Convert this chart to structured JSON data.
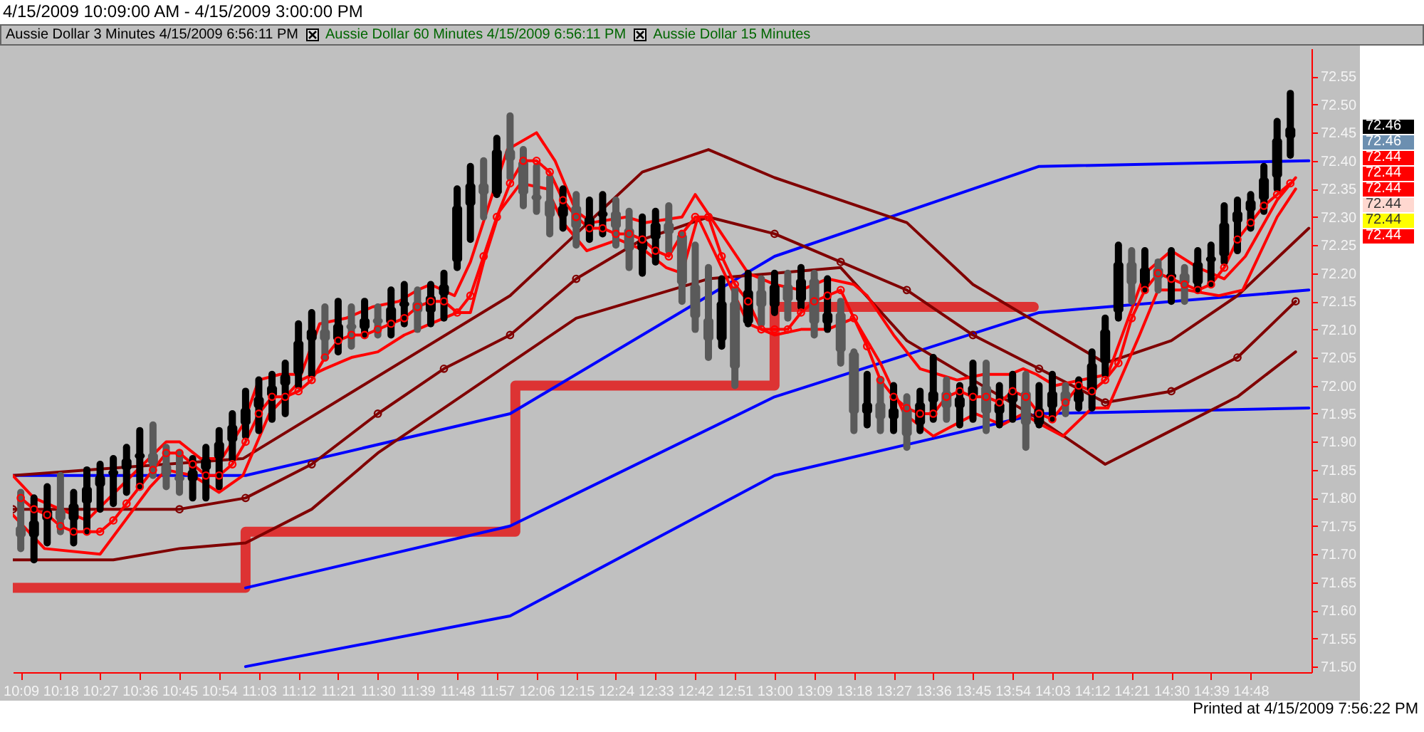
{
  "chart_data": {
    "type": "candlestick",
    "title": "4/15/2009 10:09:00 AM - 4/15/2009 3:00:00 PM",
    "subtitle": "Aussie Dollar 3 Minutes 4/15/2009 6:56:11 PM",
    "annotations": [
      "Aussie Dollar 60 Minutes 4/15/2009 6:56:11 PM",
      "Aussie Dollar 15 Minutes",
      "Printed at 4/15/2009 7:56:22 PM",
      "72.46",
      "72.46",
      "72.44",
      "72.44",
      "72.44",
      "72.44",
      "72.44",
      "72.44"
    ],
    "x": [
      10.15,
      10.2,
      10.25,
      10.3,
      10.35,
      10.4,
      10.45,
      10.5,
      10.55,
      10.6,
      10.65,
      10.7,
      10.75,
      10.8,
      10.85,
      10.9,
      10.95,
      11,
      11.05,
      11.1,
      11.15,
      11.2,
      11.25,
      11.3,
      11.35,
      11.4,
      11.45,
      11.5,
      11.55,
      11.6,
      11.65,
      11.7,
      11.75,
      11.8,
      11.85,
      11.9,
      11.95,
      12,
      12.05,
      12.1,
      12.15,
      12.2,
      12.25,
      12.3,
      12.35,
      12.4,
      12.45,
      12.5,
      12.55,
      12.6,
      12.65,
      12.7,
      12.75,
      12.8,
      12.85,
      12.9,
      12.95,
      13,
      13.05,
      13.1,
      13.15,
      13.2,
      13.25,
      13.3,
      13.35,
      13.4,
      13.45,
      13.5,
      13.55,
      13.6,
      13.65,
      13.7,
      13.75,
      13.8,
      13.85,
      13.9,
      13.95,
      14,
      14.05,
      14.1,
      14.15,
      14.2,
      14.25,
      14.3,
      14.35,
      14.4,
      14.45,
      14.5,
      14.55,
      14.6,
      14.65,
      14.7,
      14.75,
      14.8,
      14.85,
      14.9,
      14.95
    ],
    "ohlc": [
      [
        71.75,
        71.81,
        71.71,
        71.73
      ],
      [
        71.73,
        71.8,
        71.69,
        71.76
      ],
      [
        71.76,
        71.82,
        71.72,
        71.78
      ],
      [
        71.78,
        71.84,
        71.74,
        71.76
      ],
      [
        71.76,
        71.81,
        71.72,
        71.79
      ],
      [
        71.79,
        71.85,
        71.74,
        71.82
      ],
      [
        71.82,
        71.86,
        71.78,
        71.84
      ],
      [
        71.84,
        71.87,
        71.79,
        71.85
      ],
      [
        71.85,
        71.89,
        71.81,
        71.87
      ],
      [
        71.87,
        71.92,
        71.82,
        71.88
      ],
      [
        71.88,
        71.93,
        71.84,
        71.86
      ],
      [
        71.86,
        71.89,
        71.82,
        71.84
      ],
      [
        71.84,
        71.88,
        71.81,
        71.83
      ],
      [
        71.83,
        71.87,
        71.8,
        71.85
      ],
      [
        71.85,
        71.89,
        71.8,
        71.87
      ],
      [
        71.87,
        71.92,
        71.82,
        71.9
      ],
      [
        71.9,
        71.95,
        71.87,
        71.93
      ],
      [
        71.93,
        71.99,
        71.91,
        71.96
      ],
      [
        71.96,
        72.01,
        71.92,
        71.98
      ],
      [
        71.98,
        72.02,
        71.94,
        72.0
      ],
      [
        72.0,
        72.04,
        71.95,
        72.02
      ],
      [
        72.02,
        72.11,
        72.0,
        72.08
      ],
      [
        72.08,
        72.13,
        72.02,
        72.1
      ],
      [
        72.1,
        72.14,
        72.05,
        72.08
      ],
      [
        72.08,
        72.15,
        72.06,
        72.11
      ],
      [
        72.11,
        72.14,
        72.07,
        72.1
      ],
      [
        72.1,
        72.15,
        72.09,
        72.12
      ],
      [
        72.12,
        72.14,
        72.09,
        72.11
      ],
      [
        72.11,
        72.17,
        72.09,
        72.14
      ],
      [
        72.14,
        72.18,
        72.11,
        72.15
      ],
      [
        72.15,
        72.17,
        72.1,
        72.13
      ],
      [
        72.13,
        72.18,
        72.11,
        72.16
      ],
      [
        72.16,
        72.2,
        72.12,
        72.18
      ],
      [
        72.22,
        72.35,
        72.21,
        72.32
      ],
      [
        72.32,
        72.39,
        72.26,
        72.36
      ],
      [
        72.36,
        72.4,
        72.3,
        72.34
      ],
      [
        72.34,
        72.44,
        72.34,
        72.42
      ],
      [
        72.42,
        72.48,
        72.37,
        72.4
      ],
      [
        72.4,
        72.42,
        72.32,
        72.34
      ],
      [
        72.34,
        72.39,
        72.31,
        72.33
      ],
      [
        72.33,
        72.37,
        72.27,
        72.3
      ],
      [
        72.3,
        72.35,
        72.28,
        72.32
      ],
      [
        72.32,
        72.34,
        72.25,
        72.28
      ],
      [
        72.28,
        72.33,
        72.26,
        72.3
      ],
      [
        72.3,
        72.34,
        72.27,
        72.31
      ],
      [
        72.31,
        72.33,
        72.25,
        72.28
      ],
      [
        72.28,
        72.31,
        72.21,
        72.24
      ],
      [
        72.24,
        72.3,
        72.2,
        72.26
      ],
      [
        72.26,
        72.31,
        72.22,
        72.29
      ],
      [
        72.29,
        72.32,
        72.24,
        72.27
      ],
      [
        72.27,
        72.27,
        72.15,
        72.18
      ],
      [
        72.18,
        72.25,
        72.1,
        72.12
      ],
      [
        72.12,
        72.21,
        72.05,
        72.08
      ],
      [
        72.08,
        72.19,
        72.07,
        72.15
      ],
      [
        72.15,
        72.17,
        72.0,
        72.03
      ],
      [
        72.11,
        72.2,
        72.11,
        72.17
      ],
      [
        72.17,
        72.19,
        72.11,
        72.14
      ],
      [
        72.14,
        72.2,
        72.13,
        72.18
      ],
      [
        72.18,
        72.2,
        72.12,
        72.15
      ],
      [
        72.15,
        72.21,
        72.14,
        72.19
      ],
      [
        72.19,
        72.2,
        72.09,
        72.11
      ],
      [
        72.11,
        72.19,
        72.1,
        72.13
      ],
      [
        72.13,
        72.15,
        72.04,
        72.06
      ],
      [
        72.06,
        72.06,
        71.92,
        71.95
      ],
      [
        71.95,
        72.02,
        71.93,
        71.97
      ],
      [
        71.97,
        72.01,
        71.92,
        71.94
      ],
      [
        71.94,
        72.0,
        71.92,
        71.96
      ],
      [
        71.96,
        71.98,
        71.89,
        71.91
      ],
      [
        71.93,
        71.99,
        71.92,
        71.97
      ],
      [
        71.97,
        72.05,
        71.94,
        71.99
      ],
      [
        71.99,
        72.01,
        71.94,
        71.96
      ],
      [
        71.96,
        72.0,
        71.93,
        71.98
      ],
      [
        71.98,
        72.04,
        71.94,
        72.0
      ],
      [
        72.0,
        72.04,
        71.92,
        71.95
      ],
      [
        71.95,
        72.0,
        71.93,
        71.97
      ],
      [
        71.97,
        72.02,
        71.94,
        71.99
      ],
      [
        71.99,
        72.02,
        71.89,
        71.93
      ],
      [
        71.93,
        72.0,
        71.93,
        71.96
      ],
      [
        71.96,
        72.02,
        71.94,
        71.99
      ],
      [
        71.99,
        72.0,
        71.95,
        71.97
      ],
      [
        71.97,
        72.01,
        71.96,
        71.99
      ],
      [
        71.99,
        72.06,
        71.96,
        72.04
      ],
      [
        72.04,
        72.12,
        72.02,
        72.1
      ],
      [
        72.13,
        72.25,
        72.12,
        72.22
      ],
      [
        72.22,
        72.24,
        72.15,
        72.18
      ],
      [
        72.18,
        72.24,
        72.17,
        72.21
      ],
      [
        72.21,
        72.22,
        72.17,
        72.19
      ],
      [
        72.19,
        72.24,
        72.15,
        72.2
      ],
      [
        72.2,
        72.21,
        72.15,
        72.18
      ],
      [
        72.18,
        72.24,
        72.17,
        72.22
      ],
      [
        72.22,
        72.25,
        72.18,
        72.23
      ],
      [
        72.23,
        72.32,
        72.22,
        72.29
      ],
      [
        72.29,
        72.33,
        72.24,
        72.31
      ],
      [
        72.31,
        72.34,
        72.28,
        72.33
      ],
      [
        72.33,
        72.39,
        72.31,
        72.37
      ],
      [
        72.37,
        72.47,
        72.35,
        72.44
      ],
      [
        72.44,
        72.52,
        72.41,
        72.46
      ]
    ],
    "series": [
      {
        "type": "step",
        "color": "#dd3333",
        "x": [
          10.12,
          11.0,
          12.02,
          13.0,
          13.98
        ],
        "values": [
          71.64,
          71.74,
          72.0,
          72.14,
          72.14
        ]
      },
      {
        "type": "line",
        "color": "#0000ff",
        "x": [
          10.12,
          11.0,
          12.0,
          13.0,
          14.0,
          15.02
        ],
        "values": [
          71.84,
          71.84,
          71.95,
          72.23,
          72.39,
          72.4
        ]
      },
      {
        "type": "line",
        "color": "#0000ff",
        "x": [
          11.0,
          12.0,
          13.0,
          14.0,
          15.02
        ],
        "values": [
          71.64,
          71.75,
          71.98,
          72.13,
          72.17
        ]
      },
      {
        "type": "line",
        "color": "#0000ff",
        "x": [
          11.0,
          12.0,
          13.0,
          14.0,
          15.02
        ],
        "values": [
          71.5,
          71.59,
          71.84,
          71.95,
          71.96
        ]
      },
      {
        "type": "line",
        "color": "#800000",
        "x": [
          10.12,
          10.99,
          12.0,
          12.5,
          12.75,
          13.0,
          13.5,
          13.75,
          14.25,
          14.5,
          14.75,
          15.02
        ],
        "values": [
          71.84,
          71.87,
          72.16,
          72.38,
          72.42,
          72.37,
          72.29,
          72.18,
          72.04,
          72.08,
          72.16,
          72.28
        ]
      },
      {
        "type": "line",
        "color": "#800000",
        "marker": "circle",
        "x": [
          10.12,
          10.75,
          11.0,
          11.25,
          11.5,
          11.75,
          12.0,
          12.25,
          12.5,
          12.75,
          13.0,
          13.25,
          13.5,
          13.75,
          14.0,
          14.25,
          14.5,
          14.75,
          14.97
        ],
        "values": [
          71.78,
          71.78,
          71.8,
          71.86,
          71.95,
          72.03,
          72.09,
          72.19,
          72.26,
          72.3,
          72.27,
          72.22,
          72.17,
          72.09,
          72.03,
          71.97,
          71.99,
          72.05,
          72.15
        ]
      },
      {
        "type": "line",
        "color": "#800000",
        "x": [
          10.12,
          10.5,
          10.75,
          11.0,
          11.25,
          11.5,
          11.75,
          12.0,
          12.25,
          12.75,
          13.0,
          13.25,
          13.5,
          13.75,
          14.0,
          14.25,
          14.5,
          14.75,
          14.97
        ],
        "values": [
          71.69,
          71.69,
          71.71,
          71.72,
          71.78,
          71.88,
          71.96,
          72.04,
          72.12,
          72.19,
          72.2,
          72.21,
          72.08,
          72.01,
          71.94,
          71.86,
          71.92,
          71.98,
          72.06
        ]
      },
      {
        "type": "line",
        "color": "#ff0000",
        "x": [
          10.12,
          10.2,
          10.4,
          10.57,
          10.7,
          10.75,
          10.83,
          10.91,
          10.99,
          11.05,
          11.13,
          11.21,
          11.28,
          11.38,
          11.48,
          11.58,
          11.65,
          11.7,
          11.79,
          11.85,
          11.94,
          11.99,
          12.1,
          12.17,
          12.25,
          12.31,
          12.44,
          12.51,
          12.65,
          12.7,
          12.8,
          12.9,
          13.0,
          13.1,
          13.2,
          13.3,
          13.35,
          13.45,
          13.55,
          13.69,
          13.79,
          13.89,
          13.94,
          13.99,
          14.06,
          14.16,
          14.26,
          14.4,
          14.5,
          14.6,
          14.7,
          14.78,
          14.9,
          14.97
        ],
        "values": [
          71.84,
          71.8,
          71.76,
          71.84,
          71.9,
          71.9,
          71.87,
          71.87,
          71.93,
          72.01,
          72.02,
          72.02,
          72.11,
          72.12,
          72.14,
          72.15,
          72.17,
          72.18,
          72.16,
          72.22,
          72.35,
          72.42,
          72.45,
          72.4,
          72.31,
          72.29,
          72.3,
          72.29,
          72.3,
          72.34,
          72.27,
          72.2,
          72.18,
          72.17,
          72.19,
          72.18,
          72.16,
          72.09,
          72.03,
          72.01,
          72.02,
          72.02,
          72.03,
          72.02,
          72.0,
          72.01,
          72.02,
          72.2,
          72.24,
          72.21,
          72.19,
          72.23,
          72.33,
          72.37
        ]
      },
      {
        "type": "line",
        "color": "#ff0000",
        "marker": "circle",
        "values": [
          71.8,
          71.78,
          71.77,
          71.75,
          71.74,
          71.74,
          71.74,
          71.76,
          71.79,
          71.82,
          71.85,
          71.88,
          71.88,
          71.86,
          71.84,
          71.84,
          71.86,
          71.9,
          71.95,
          71.98,
          71.98,
          71.99,
          72.01,
          72.05,
          72.08,
          72.09,
          72.09,
          72.1,
          72.11,
          72.12,
          72.14,
          72.15,
          72.15,
          72.13,
          72.16,
          72.23,
          72.3,
          72.36,
          72.4,
          72.4,
          72.38,
          72.33,
          72.3,
          72.28,
          72.28,
          72.27,
          72.27,
          72.26,
          72.24,
          72.23,
          72.27,
          72.3,
          72.3,
          72.23,
          72.18,
          72.15,
          72.1,
          72.1,
          72.1,
          72.13,
          72.15,
          72.16,
          72.17,
          72.12,
          72.07,
          72.01,
          71.98,
          71.96,
          71.95,
          71.95,
          71.98,
          71.99,
          71.98,
          71.98,
          71.97,
          71.99,
          71.98,
          71.95,
          71.94,
          71.97,
          72.0,
          71.99,
          72.01,
          72.04,
          72.12,
          72.17,
          72.2,
          72.19,
          72.18,
          72.17,
          72.18,
          72.21,
          72.26,
          72.29,
          72.32,
          72.34,
          72.36
        ]
      },
      {
        "type": "line",
        "color": "#ff0000",
        "x": [
          10.12,
          10.24,
          10.45,
          10.64,
          10.7,
          10.8,
          10.9,
          10.99,
          11.09,
          11.21,
          11.3,
          11.4,
          11.5,
          11.6,
          11.7,
          11.8,
          11.85,
          11.9,
          11.96,
          12.04,
          12.14,
          12.2,
          12.29,
          12.41,
          12.51,
          12.59,
          12.65,
          12.71,
          12.81,
          12.9,
          13.0,
          13.1,
          13.2,
          13.3,
          13.4,
          13.49,
          13.6,
          13.76,
          13.86,
          13.94,
          14.01,
          14.09,
          14.2,
          14.26,
          14.38,
          14.45,
          14.56,
          14.68,
          14.77,
          14.9,
          14.97
        ],
        "values": [
          71.77,
          71.71,
          71.7,
          71.82,
          71.85,
          71.84,
          71.81,
          71.84,
          71.95,
          72.01,
          72.03,
          72.05,
          72.06,
          72.09,
          72.11,
          72.13,
          72.13,
          72.22,
          72.31,
          72.36,
          72.35,
          72.29,
          72.24,
          72.26,
          72.24,
          72.21,
          72.2,
          72.3,
          72.2,
          72.11,
          72.09,
          72.1,
          72.1,
          72.12,
          72.04,
          71.95,
          71.91,
          71.95,
          71.93,
          71.95,
          71.93,
          71.91,
          71.96,
          71.96,
          72.09,
          72.17,
          72.17,
          72.16,
          72.17,
          72.3,
          72.35
        ]
      }
    ],
    "xlim": [
      10.12,
      15.03
    ],
    "xticks": [
      {
        "value": 10.15,
        "label": "10:09"
      },
      {
        "value": 10.3,
        "label": "10:18"
      },
      {
        "value": 10.45,
        "label": "10:27"
      },
      {
        "value": 10.6,
        "label": "10:36"
      },
      {
        "value": 10.75,
        "label": "10:45"
      },
      {
        "value": 10.9,
        "label": "10:54"
      },
      {
        "value": 11.05,
        "label": "11:03"
      },
      {
        "value": 11.2,
        "label": "11:12"
      },
      {
        "value": 11.35,
        "label": "11:21"
      },
      {
        "value": 11.5,
        "label": "11:30"
      },
      {
        "value": 11.65,
        "label": "11:39"
      },
      {
        "value": 11.8,
        "label": "11:48"
      },
      {
        "value": 11.95,
        "label": "11:57"
      },
      {
        "value": 12.1,
        "label": "12:06"
      },
      {
        "value": 12.25,
        "label": "12:15"
      },
      {
        "value": 12.4,
        "label": "12:24"
      },
      {
        "value": 12.55,
        "label": "12:33"
      },
      {
        "value": 12.7,
        "label": "12:42"
      },
      {
        "value": 12.85,
        "label": "12:51"
      },
      {
        "value": 13,
        "label": "13:00"
      },
      {
        "value": 13.15,
        "label": "13:09"
      },
      {
        "value": 13.3,
        "label": "13:18"
      },
      {
        "value": 13.45,
        "label": "13:27"
      },
      {
        "value": 13.6,
        "label": "13:36"
      },
      {
        "value": 13.75,
        "label": "13:45"
      },
      {
        "value": 13.9,
        "label": "13:54"
      },
      {
        "value": 14.05,
        "label": "14:03"
      },
      {
        "value": 14.2,
        "label": "14:12"
      },
      {
        "value": 14.35,
        "label": "14:21"
      },
      {
        "value": 14.5,
        "label": "14:30"
      },
      {
        "value": 14.65,
        "label": "14:39"
      },
      {
        "value": 14.8,
        "label": "14:48"
      }
    ],
    "ylim": [
      71.49,
      72.6
    ],
    "yticks": [
      {
        "value": 71.5,
        "label": "71.50"
      },
      71.55,
      {
        "value": 71.6,
        "label": "71.60"
      },
      71.65,
      {
        "value": 71.7,
        "label": "71.70"
      },
      71.75,
      {
        "value": 71.8,
        "label": "71.80"
      },
      71.85,
      {
        "value": 71.9,
        "label": "71.90"
      },
      71.95,
      {
        "value": 72,
        "label": "72.00"
      },
      72.05,
      {
        "value": 72.1,
        "label": "72.10"
      },
      72.15,
      {
        "value": 72.2,
        "label": "72.20"
      },
      72.25,
      {
        "value": 72.3,
        "label": "72.30"
      },
      72.35,
      {
        "value": 72.4,
        "label": "72.40"
      },
      72.45,
      {
        "value": 72.5,
        "label": "72.50"
      },
      72.55
    ]
  }
}
